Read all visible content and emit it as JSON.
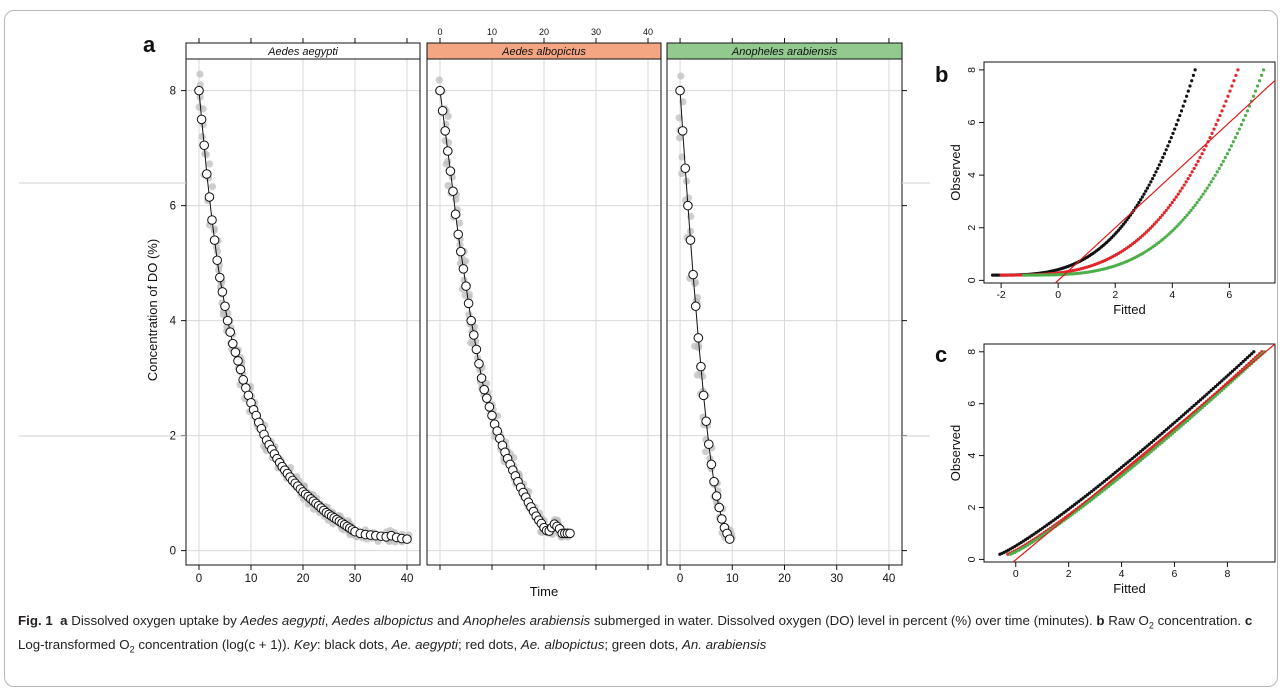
{
  "figure": {
    "panel_letters": {
      "a": "a",
      "b": "b",
      "c": "c"
    },
    "caption": {
      "fig_label": "Fig. 1",
      "a_label": "a",
      "a_text_1": "Dissolved oxygen uptake by ",
      "sp1": "Aedes aegypti",
      "sep1": ", ",
      "sp2": "Aedes albopictus",
      "and": " and ",
      "sp3": "Anopheles arabiensis",
      "a_text_2": " submerged in water. Dissolved oxygen (DO) level in percent (%) over time (minutes).",
      "b_label": "b",
      "b_text_1": "Raw O",
      "sub2": "2",
      "b_text_2": " concentration.",
      "c_label": "c",
      "c_text_1": "Log-transformed O",
      "c_text_2": " concentration (log(c + 1)).",
      "key_label": "Key",
      "key_1": ": black dots, ",
      "key_sp1": "Ae. aegypti",
      "key_2": "; red dots, ",
      "key_sp2": "Ae. albopictus",
      "key_3": "; green dots, ",
      "key_sp3": "An. arabiensis"
    }
  },
  "colors": {
    "strip_aegypti": "#ffffff",
    "strip_albopictus": "#f4a582",
    "strip_arabiensis": "#92c98e",
    "aegypti": "#111111",
    "albopictus": "#e3262b",
    "arabiensis": "#4daf4a",
    "raw_points": "#bdbdbd",
    "fit_line": "#e31a1c",
    "grid": "#d9d9d9"
  },
  "chart_data": [
    {
      "id": "a",
      "type": "line",
      "xlabel": "Time",
      "ylabel": "Concentration of DO (%)",
      "xlim": [
        -2.5,
        42.5
      ],
      "ylim": [
        -0.25,
        8.55
      ],
      "x_ticks": [
        0,
        10,
        20,
        30,
        40
      ],
      "y_ticks": [
        0,
        2,
        4,
        6,
        8
      ],
      "grid": true,
      "panels": [
        {
          "strip": "Aedes aegypti",
          "x": [
            0,
            0.5,
            1,
            1.5,
            2,
            2.5,
            3,
            3.5,
            4,
            4.5,
            5,
            5.5,
            6,
            6.5,
            7,
            7.5,
            8,
            8.5,
            9,
            9.5,
            10,
            10.5,
            11,
            11.5,
            12,
            12.5,
            13,
            13.5,
            14,
            14.5,
            15,
            15.5,
            16,
            16.5,
            17,
            17.5,
            18,
            18.5,
            19,
            19.5,
            20,
            20.5,
            21,
            21.5,
            22,
            22.5,
            23,
            23.5,
            24,
            24.5,
            25,
            25.5,
            26,
            26.5,
            27,
            27.5,
            28,
            28.5,
            29,
            29.5,
            30,
            31,
            32,
            33,
            34,
            35,
            36,
            37,
            38,
            39,
            40
          ],
          "y": [
            8.0,
            7.5,
            7.05,
            6.55,
            6.15,
            5.75,
            5.4,
            5.05,
            4.75,
            4.5,
            4.25,
            4.0,
            3.8,
            3.6,
            3.45,
            3.3,
            3.15,
            2.97,
            2.83,
            2.7,
            2.57,
            2.45,
            2.35,
            2.23,
            2.12,
            2.02,
            1.92,
            1.84,
            1.76,
            1.68,
            1.6,
            1.53,
            1.46,
            1.4,
            1.34,
            1.28,
            1.22,
            1.17,
            1.12,
            1.07,
            1.02,
            0.98,
            0.94,
            0.9,
            0.86,
            0.82,
            0.78,
            0.74,
            0.7,
            0.66,
            0.63,
            0.6,
            0.57,
            0.54,
            0.51,
            0.48,
            0.45,
            0.42,
            0.39,
            0.36,
            0.33,
            0.3,
            0.28,
            0.27,
            0.26,
            0.25,
            0.24,
            0.26,
            0.23,
            0.21,
            0.2
          ]
        },
        {
          "strip": "Aedes albopictus",
          "x": [
            0,
            0.5,
            1,
            1.5,
            2,
            2.5,
            3,
            3.5,
            4,
            4.5,
            5,
            5.5,
            6,
            6.5,
            7,
            7.5,
            8,
            8.5,
            9,
            9.5,
            10,
            10.5,
            11,
            11.5,
            12,
            12.5,
            13,
            13.5,
            14,
            14.5,
            15,
            15.5,
            16,
            16.5,
            17,
            17.5,
            18,
            18.5,
            19,
            19.5,
            20,
            20.5,
            21,
            21.5,
            22,
            22.5,
            23,
            23.5,
            24,
            24.5,
            25
          ],
          "y": [
            8.0,
            7.65,
            7.3,
            6.95,
            6.6,
            6.25,
            5.85,
            5.5,
            5.2,
            4.9,
            4.6,
            4.3,
            4.0,
            3.75,
            3.5,
            3.25,
            3.0,
            2.8,
            2.65,
            2.5,
            2.35,
            2.2,
            2.08,
            1.95,
            1.83,
            1.71,
            1.6,
            1.5,
            1.4,
            1.3,
            1.2,
            1.1,
            1.01,
            0.93,
            0.84,
            0.76,
            0.68,
            0.6,
            0.53,
            0.47,
            0.4,
            0.35,
            0.34,
            0.4,
            0.46,
            0.42,
            0.38,
            0.3,
            0.3,
            0.3,
            0.3
          ]
        },
        {
          "strip": "Anopheles arabiensis",
          "x": [
            0,
            0.5,
            1,
            1.5,
            2,
            2.5,
            3,
            3.5,
            4,
            4.5,
            5,
            5.5,
            6,
            6.5,
            7,
            7.5,
            8,
            8.5,
            9,
            9.5
          ],
          "y": [
            8.0,
            7.3,
            6.65,
            6.0,
            5.4,
            4.8,
            4.25,
            3.7,
            3.2,
            2.7,
            2.25,
            1.85,
            1.5,
            1.2,
            0.95,
            0.75,
            0.55,
            0.4,
            0.3,
            0.2
          ]
        }
      ]
    },
    {
      "id": "b",
      "type": "scatter",
      "xlabel": "Fitted",
      "ylabel": "Observed",
      "xlim": [
        -2.6,
        7.6
      ],
      "ylim": [
        -0.1,
        8.3
      ],
      "x_ticks": [
        -2,
        0,
        2,
        4,
        6
      ],
      "y_ticks": [
        0,
        2,
        4,
        6,
        8
      ],
      "reference_line": {
        "slope": 1,
        "intercept": 0
      },
      "series": [
        {
          "name": "Ae. aegypti",
          "color": "aegypti",
          "x_range": [
            -2.3,
            4.8
          ],
          "y_range": [
            0.2,
            8.0
          ]
        },
        {
          "name": "Ae. albopictus",
          "color": "albopictus",
          "x_range": [
            -2.0,
            6.3
          ],
          "y_range": [
            0.2,
            8.0
          ]
        },
        {
          "name": "An. arabiensis",
          "color": "arabiensis",
          "x_range": [
            -1.2,
            7.2
          ],
          "y_range": [
            0.2,
            8.0
          ]
        }
      ]
    },
    {
      "id": "c",
      "type": "scatter",
      "xlabel": "Fitted",
      "ylabel": "Observed",
      "xlim": [
        -1.2,
        9.8
      ],
      "ylim": [
        -0.1,
        8.3
      ],
      "x_ticks": [
        0,
        2,
        4,
        6,
        8
      ],
      "y_ticks": [
        0,
        2,
        4,
        6,
        8
      ],
      "reference_line": {
        "slope": 1,
        "intercept": 0
      },
      "series": [
        {
          "name": "Ae. aegypti",
          "color": "aegypti",
          "x_range": [
            -0.6,
            9.0
          ],
          "y_range": [
            0.2,
            8.0
          ]
        },
        {
          "name": "Ae. albopictus",
          "color": "albopictus",
          "x_range": [
            -0.3,
            9.3
          ],
          "y_range": [
            0.2,
            8.0
          ]
        },
        {
          "name": "An. arabiensis",
          "color": "arabiensis",
          "x_range": [
            -0.2,
            9.4
          ],
          "y_range": [
            0.2,
            8.0
          ]
        }
      ]
    }
  ]
}
